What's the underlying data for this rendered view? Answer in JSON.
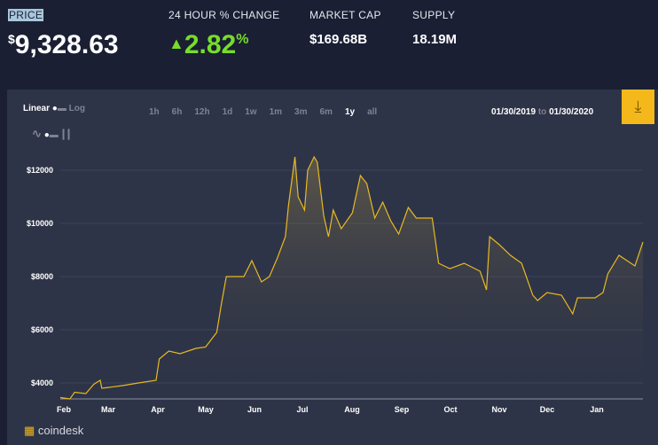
{
  "header": {
    "price_label": "PRICE",
    "currency_symbol": "$",
    "price": "9,328.63",
    "change_label": "24 HOUR % CHANGE",
    "change": "2.82",
    "change_unit": "%",
    "change_direction": "up",
    "market_cap_label": "MARKET CAP",
    "market_cap": "$169.68B",
    "supply_label": "SUPPLY",
    "supply": "18.19M"
  },
  "controls": {
    "linear": "Linear",
    "log": "Log",
    "ranges": [
      "1h",
      "6h",
      "12h",
      "1d",
      "1w",
      "1m",
      "3m",
      "6m",
      "1y",
      "all"
    ],
    "active_range": "1y",
    "date_from": "01/30/2019",
    "date_to_word": "to",
    "date_to": "01/30/2020"
  },
  "brand": "coindesk",
  "colors": {
    "line": "#e8b923",
    "green": "#77dd2a",
    "download": "#f4b81b"
  },
  "chart_data": {
    "type": "area",
    "xlim": [
      "2019-01-30",
      "2020-01-30"
    ],
    "ylim": [
      3367,
      13000
    ],
    "yticks": [
      4000,
      6000,
      8000,
      10000,
      12000
    ],
    "ytick_labels": [
      "$4000",
      "$6000",
      "$8000",
      "$10000",
      "$12000"
    ],
    "xtick_labels": [
      "Feb",
      "Mar",
      "Apr",
      "May",
      "Jun",
      "Jul",
      "Aug",
      "Sep",
      "Oct",
      "Nov",
      "Dec",
      "Jan"
    ],
    "grid": true,
    "points": [
      [
        "2019-01-30",
        3450
      ],
      [
        "2019-02-05",
        3400
      ],
      [
        "2019-02-08",
        3650
      ],
      [
        "2019-02-15",
        3600
      ],
      [
        "2019-02-20",
        3950
      ],
      [
        "2019-02-24",
        4100
      ],
      [
        "2019-02-25",
        3800
      ],
      [
        "2019-03-01",
        3830
      ],
      [
        "2019-03-10",
        3900
      ],
      [
        "2019-03-20",
        4000
      ],
      [
        "2019-03-31",
        4100
      ],
      [
        "2019-04-02",
        4900
      ],
      [
        "2019-04-08",
        5200
      ],
      [
        "2019-04-15",
        5100
      ],
      [
        "2019-04-25",
        5300
      ],
      [
        "2019-05-01",
        5350
      ],
      [
        "2019-05-08",
        5900
      ],
      [
        "2019-05-11",
        7000
      ],
      [
        "2019-05-14",
        8000
      ],
      [
        "2019-05-20",
        8000
      ],
      [
        "2019-05-25",
        8000
      ],
      [
        "2019-05-30",
        8600
      ],
      [
        "2019-06-05",
        7800
      ],
      [
        "2019-06-10",
        8000
      ],
      [
        "2019-06-15",
        8700
      ],
      [
        "2019-06-20",
        9500
      ],
      [
        "2019-06-22",
        10700
      ],
      [
        "2019-06-26",
        12500
      ],
      [
        "2019-06-28",
        11000
      ],
      [
        "2019-07-02",
        10500
      ],
      [
        "2019-07-04",
        12000
      ],
      [
        "2019-07-08",
        12500
      ],
      [
        "2019-07-10",
        12300
      ],
      [
        "2019-07-14",
        10300
      ],
      [
        "2019-07-17",
        9500
      ],
      [
        "2019-07-20",
        10500
      ],
      [
        "2019-07-25",
        9800
      ],
      [
        "2019-08-01",
        10400
      ],
      [
        "2019-08-06",
        11800
      ],
      [
        "2019-08-10",
        11500
      ],
      [
        "2019-08-15",
        10200
      ],
      [
        "2019-08-20",
        10800
      ],
      [
        "2019-08-25",
        10100
      ],
      [
        "2019-08-30",
        9600
      ],
      [
        "2019-09-05",
        10600
      ],
      [
        "2019-09-10",
        10200
      ],
      [
        "2019-09-20",
        10200
      ],
      [
        "2019-09-24",
        8500
      ],
      [
        "2019-10-01",
        8300
      ],
      [
        "2019-10-10",
        8500
      ],
      [
        "2019-10-20",
        8200
      ],
      [
        "2019-10-24",
        7500
      ],
      [
        "2019-10-26",
        9500
      ],
      [
        "2019-11-01",
        9200
      ],
      [
        "2019-11-08",
        8800
      ],
      [
        "2019-11-15",
        8500
      ],
      [
        "2019-11-22",
        7300
      ],
      [
        "2019-11-25",
        7100
      ],
      [
        "2019-12-01",
        7400
      ],
      [
        "2019-12-10",
        7300
      ],
      [
        "2019-12-17",
        6600
      ],
      [
        "2019-12-20",
        7200
      ],
      [
        "2019-12-31",
        7200
      ],
      [
        "2020-01-05",
        7400
      ],
      [
        "2020-01-08",
        8100
      ],
      [
        "2020-01-15",
        8800
      ],
      [
        "2020-01-20",
        8600
      ],
      [
        "2020-01-25",
        8400
      ],
      [
        "2020-01-30",
        9300
      ]
    ]
  }
}
